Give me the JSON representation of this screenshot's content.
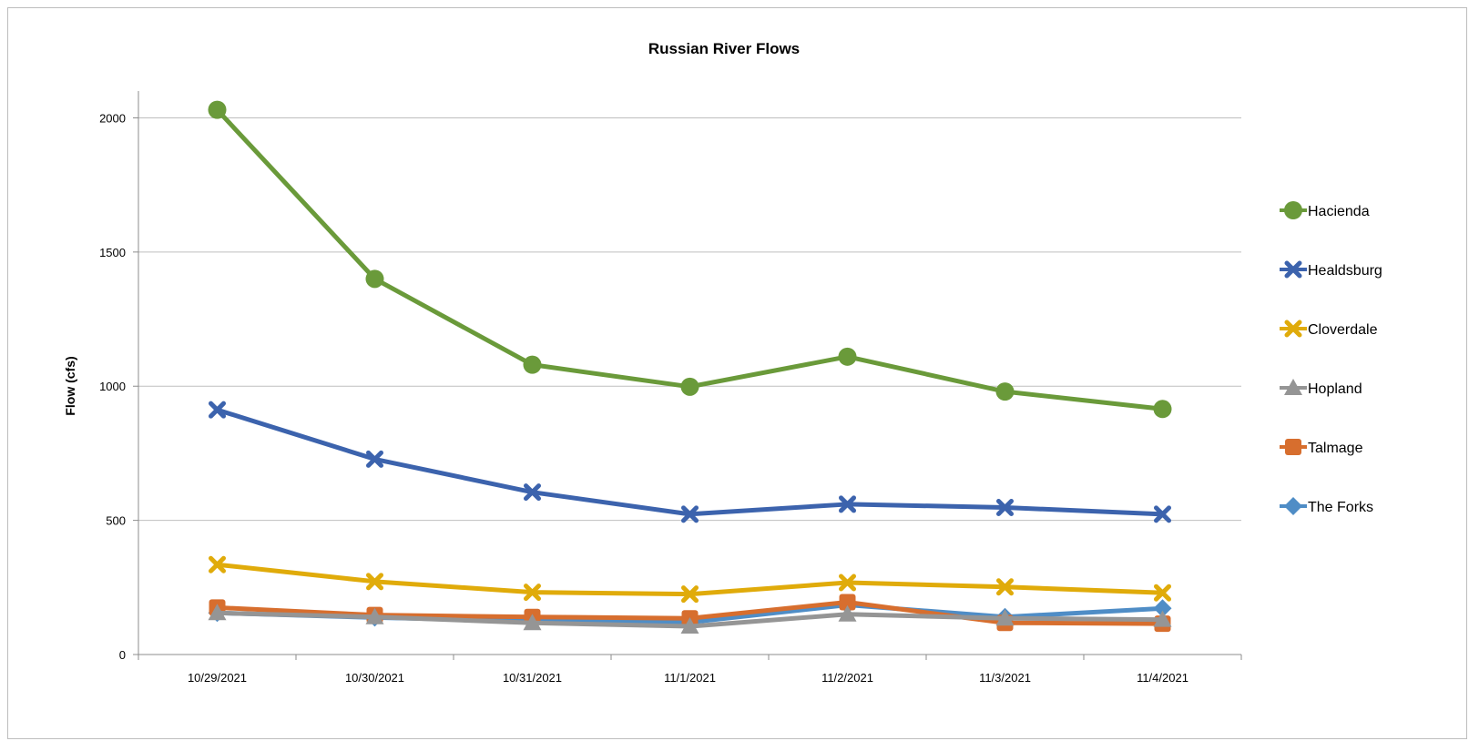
{
  "chart_data": {
    "type": "line",
    "title": "Russian River Flows",
    "xlabel": "",
    "ylabel": "Flow (cfs)",
    "ylim": [
      0,
      2100
    ],
    "yticks": [
      0,
      500,
      1000,
      1500,
      2000
    ],
    "grid": "horizontal",
    "legend_position": "right",
    "categories": [
      "10/29/2021",
      "10/30/2021",
      "10/31/2021",
      "11/1/2021",
      "11/2/2021",
      "11/3/2021",
      "11/4/2021"
    ],
    "series": [
      {
        "name": "Hacienda",
        "color": "#6a9a3a",
        "marker": "circle",
        "values": [
          2030,
          1400,
          1080,
          998,
          1110,
          980,
          915
        ]
      },
      {
        "name": "Healdsburg",
        "color": "#3c63ad",
        "marker": "x",
        "values": [
          912,
          728,
          605,
          523,
          560,
          548,
          523
        ]
      },
      {
        "name": "Cloverdale",
        "color": "#e0ab0a",
        "marker": "x",
        "values": [
          335,
          272,
          232,
          225,
          268,
          252,
          230
        ]
      },
      {
        "name": "Hopland",
        "color": "#959595",
        "marker": "triangle",
        "values": [
          155,
          140,
          118,
          105,
          150,
          135,
          130
        ]
      },
      {
        "name": "Talmage",
        "color": "#d76e2e",
        "marker": "square",
        "values": [
          175,
          147,
          140,
          135,
          195,
          118,
          115
        ]
      },
      {
        "name": "The Forks",
        "color": "#4f8dc6",
        "marker": "diamond",
        "values": [
          155,
          138,
          125,
          120,
          185,
          140,
          172
        ]
      }
    ]
  }
}
